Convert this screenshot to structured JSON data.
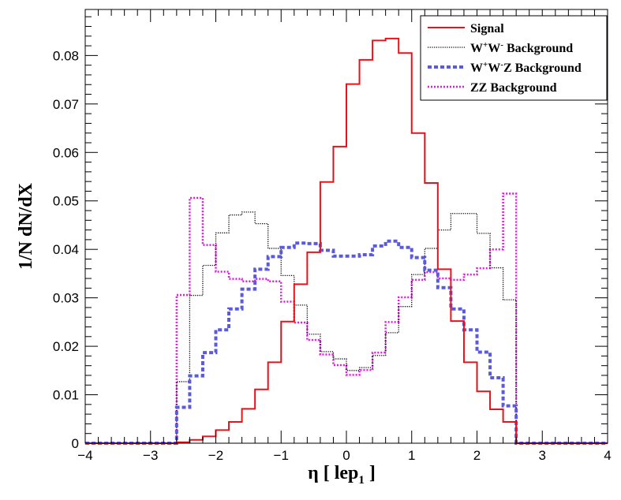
{
  "chart_data": {
    "type": "histogram",
    "title": "",
    "xlabel_main": "η [ lep",
    "xlabel_sub": "1",
    "xlabel_close": " ]",
    "ylabel": "1/N dN/dX",
    "xlim": [
      -4,
      4
    ],
    "ylim": [
      0,
      0.0895
    ],
    "bin_width": 0.2,
    "x_ticks": [
      -4,
      -3,
      -2,
      -1,
      0,
      1,
      2,
      3,
      4
    ],
    "x_tick_labels": [
      "−4",
      "−3",
      "−2",
      "−1",
      "0",
      "1",
      "2",
      "3",
      "4"
    ],
    "y_ticks": [
      0,
      0.01,
      0.02,
      0.03,
      0.04,
      0.05,
      0.06,
      0.07,
      0.08
    ],
    "y_tick_labels": [
      "0",
      "0.01",
      "0.02",
      "0.03",
      "0.04",
      "0.05",
      "0.06",
      "0.07",
      "0.08"
    ],
    "legend_position": "top-right",
    "series": [
      {
        "name": "Signal",
        "legend_parts": [
          "Signal"
        ],
        "color": "#e8121b",
        "style": "solid",
        "x": [
          -2.6,
          -2.4,
          -2.2,
          -2.0,
          -1.8,
          -1.6,
          -1.4,
          -1.2,
          -1.0,
          -0.8,
          -0.6,
          -0.4,
          -0.2,
          0.0,
          0.2,
          0.4,
          0.6,
          0.8,
          1.0,
          1.2,
          1.4,
          1.6,
          1.8,
          2.0,
          2.2,
          2.4
        ],
        "values": [
          0.0002,
          0.0007,
          0.0014,
          0.0027,
          0.0044,
          0.0071,
          0.0111,
          0.0167,
          0.0251,
          0.0328,
          0.0394,
          0.0539,
          0.0612,
          0.0741,
          0.0791,
          0.0831,
          0.0835,
          0.0805,
          0.064,
          0.0537,
          0.0359,
          0.0252,
          0.0167,
          0.0107,
          0.007,
          0.0044
        ]
      },
      {
        "name": "W+W- Background",
        "legend_parts": [
          "W",
          "+",
          "W",
          "-",
          " Background"
        ],
        "color": "#000000",
        "style": "dotted",
        "x": [
          -2.6,
          -2.4,
          -2.2,
          -2.0,
          -1.8,
          -1.6,
          -1.4,
          -1.2,
          -1.0,
          -0.8,
          -0.6,
          -0.4,
          -0.2,
          0.0,
          0.2,
          0.4,
          0.6,
          0.8,
          1.0,
          1.2,
          1.4,
          1.6,
          1.8,
          2.0,
          2.2,
          2.4
        ],
        "values": [
          0.0127,
          0.0305,
          0.0367,
          0.0434,
          0.0471,
          0.0477,
          0.0453,
          0.0402,
          0.0346,
          0.0285,
          0.0225,
          0.0189,
          0.0174,
          0.015,
          0.0156,
          0.0181,
          0.0228,
          0.0282,
          0.0348,
          0.0402,
          0.044,
          0.0474,
          0.0474,
          0.0433,
          0.0362,
          0.0296
        ]
      },
      {
        "name": "W+W-Z Background",
        "legend_parts": [
          "W",
          "+",
          "W",
          "-",
          "Z Background"
        ],
        "color": "#5a5add",
        "style": "dashed",
        "x": [
          -2.6,
          -2.4,
          -2.2,
          -2.0,
          -1.8,
          -1.6,
          -1.4,
          -1.2,
          -1.0,
          -0.8,
          -0.6,
          -0.4,
          -0.2,
          0.0,
          0.2,
          0.4,
          0.6,
          0.8,
          1.0,
          1.2,
          1.4,
          1.6,
          1.8,
          2.0,
          2.2,
          2.4
        ],
        "values": [
          0.0074,
          0.0139,
          0.0187,
          0.0234,
          0.0277,
          0.0318,
          0.0359,
          0.0385,
          0.0404,
          0.0413,
          0.0412,
          0.0398,
          0.0386,
          0.0386,
          0.0389,
          0.0407,
          0.0417,
          0.0404,
          0.0383,
          0.0357,
          0.0321,
          0.0277,
          0.0234,
          0.0188,
          0.0135,
          0.0077
        ]
      },
      {
        "name": "ZZ Background",
        "legend_parts": [
          "ZZ Background"
        ],
        "color": "#e616e6",
        "style": "dotted",
        "x": [
          -2.6,
          -2.4,
          -2.2,
          -2.0,
          -1.8,
          -1.6,
          -1.4,
          -1.2,
          -1.0,
          -0.8,
          -0.6,
          -0.4,
          -0.2,
          0.0,
          0.2,
          0.4,
          0.6,
          0.8,
          1.0,
          1.2,
          1.4,
          1.6,
          1.8,
          2.0,
          2.2,
          2.4
        ],
        "values": [
          0.0306,
          0.0506,
          0.0409,
          0.0354,
          0.0339,
          0.0334,
          0.0339,
          0.0334,
          0.0292,
          0.0249,
          0.0213,
          0.0183,
          0.0161,
          0.0141,
          0.0151,
          0.0187,
          0.025,
          0.0301,
          0.0337,
          0.0353,
          0.034,
          0.0337,
          0.0348,
          0.0361,
          0.04,
          0.0515
        ]
      }
    ]
  }
}
